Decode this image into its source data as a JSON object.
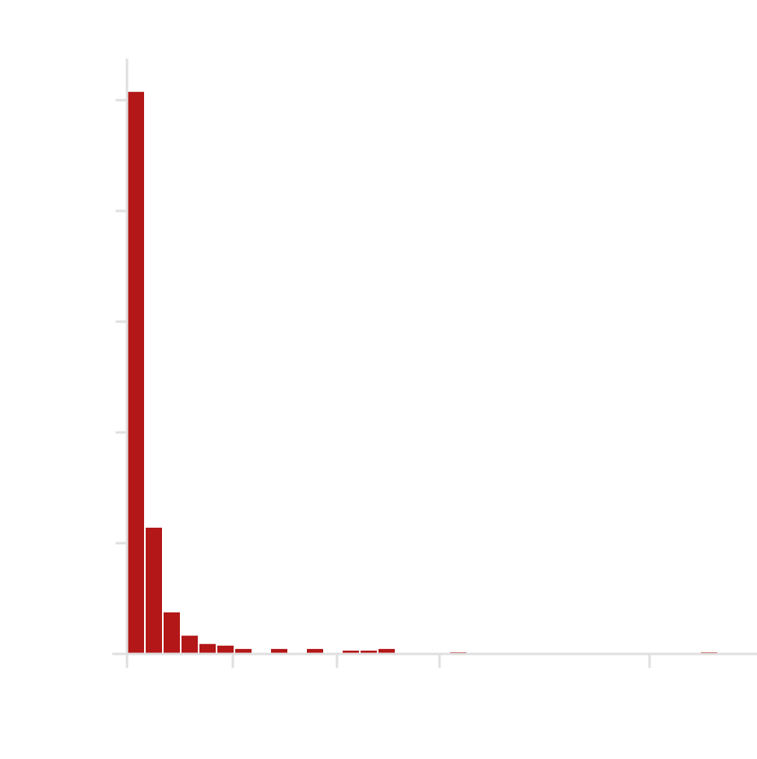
{
  "chart_data": {
    "type": "bar",
    "title": "",
    "xlabel": "",
    "ylabel": "",
    "x_tick_labels": [
      "",
      "",
      "",
      "",
      ""
    ],
    "y_tick_labels": [
      "",
      "",
      "",
      "",
      "",
      ""
    ],
    "y_ticks": [
      0,
      20,
      40,
      60,
      80,
      100
    ],
    "ylim": [
      0,
      104
    ],
    "bin_count": 34,
    "values": [
      101.5,
      22.8,
      7.5,
      3.3,
      1.8,
      1.5,
      0.9,
      0,
      0.9,
      0,
      0.9,
      0,
      0.6,
      0.6,
      0.9,
      0,
      0,
      0,
      0.3,
      0,
      0,
      0,
      0,
      0,
      0,
      0,
      0,
      0,
      0,
      0,
      0,
      0,
      0.3,
      0
    ],
    "grid": false,
    "colors": {
      "bar": "#b31717",
      "axis": "#e0e0e0",
      "background": "#ffffff"
    }
  }
}
